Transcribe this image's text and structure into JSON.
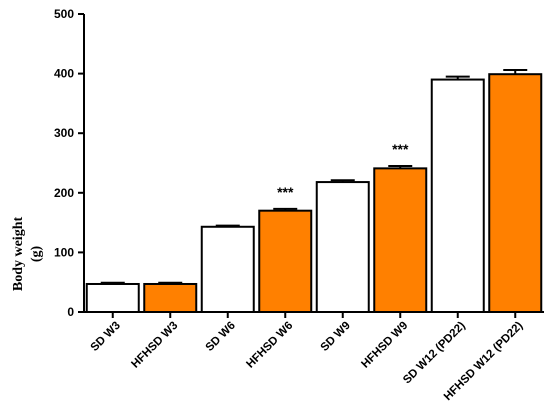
{
  "chart_data": {
    "type": "bar",
    "ylabel_line1": "Body weight",
    "ylabel_line2": "(g)",
    "ylim": [
      0,
      500
    ],
    "yticks": [
      0,
      100,
      200,
      300,
      400,
      500
    ],
    "grid": false,
    "categories": [
      "SD W3",
      "HFHSD W3",
      "SD  W6",
      "HFHSD W6",
      "SD W9",
      "HFHSD W9",
      "SD W12 (PD22)",
      "HFHSD W12 (PD22)"
    ],
    "values": [
      47,
      47,
      143,
      170,
      218,
      241,
      390,
      399
    ],
    "errors": [
      2,
      2,
      2,
      3,
      3,
      4,
      5,
      7
    ],
    "bar_colors": [
      "#ffffff",
      "#ff8000",
      "#ffffff",
      "#ff8000",
      "#ffffff",
      "#ff8000",
      "#ffffff",
      "#ff8000"
    ],
    "annotations": [
      "",
      "",
      "",
      "***",
      "",
      "***",
      "",
      ""
    ]
  }
}
